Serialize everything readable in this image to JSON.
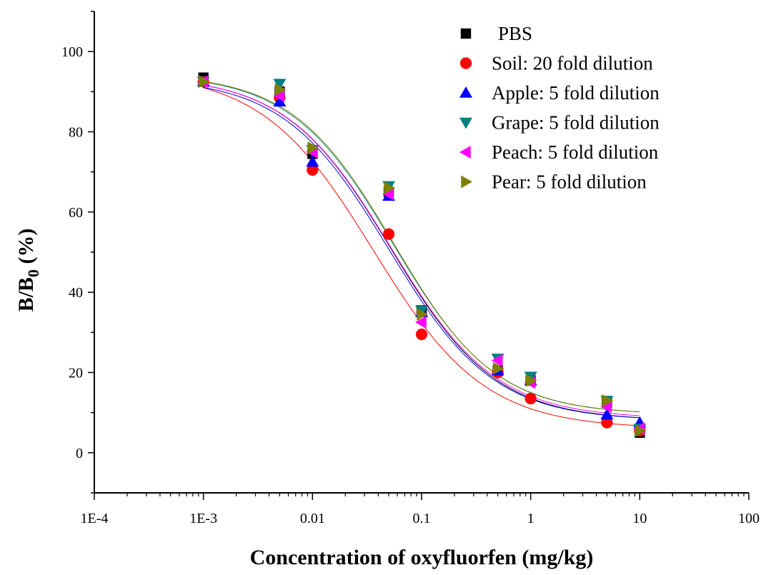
{
  "chart_data": {
    "type": "scatter",
    "title": "",
    "xlabel": "Concentration of oxyfluorfen (mg/kg)",
    "ylabel_main": "B/B",
    "ylabel_sub": "0",
    "ylabel_suffix": " (%)",
    "x_scale": "log",
    "xlim": [
      0.0001,
      100
    ],
    "ylim": [
      -10,
      110
    ],
    "x_ticks": [
      {
        "value": 0.0001,
        "label": "1E-4"
      },
      {
        "value": 0.001,
        "label": "1E-3"
      },
      {
        "value": 0.01,
        "label": "0.01"
      },
      {
        "value": 0.1,
        "label": "0.1"
      },
      {
        "value": 1,
        "label": "1"
      },
      {
        "value": 10,
        "label": "10"
      },
      {
        "value": 100,
        "label": "100"
      }
    ],
    "y_ticks": [
      {
        "value": 0,
        "label": "0"
      },
      {
        "value": 20,
        "label": "20"
      },
      {
        "value": 40,
        "label": "40"
      },
      {
        "value": 60,
        "label": "60"
      },
      {
        "value": 80,
        "label": "80"
      },
      {
        "value": 100,
        "label": "100"
      }
    ],
    "grid": false,
    "legend_position": "top-right",
    "x": [
      0.001,
      0.005,
      0.01,
      0.05,
      0.1,
      0.5,
      1,
      5,
      10
    ],
    "series": [
      {
        "name": "PBS",
        "marker": "square",
        "color": "#000000",
        "values": [
          93.5,
          90.0,
          74.5,
          65.0,
          35.5,
          20.5,
          18.0,
          12.5,
          5.0
        ],
        "fit": {
          "top": 94,
          "bottom": 8,
          "ec50": 0.052,
          "hill": 0.9
        }
      },
      {
        "name": "Soil: 20 fold dilution",
        "marker": "circle",
        "color": "#ff0000",
        "values": [
          92.5,
          88.5,
          70.5,
          54.5,
          29.5,
          20.0,
          13.5,
          7.5,
          5.5
        ],
        "fit": {
          "top": 95,
          "bottom": 6,
          "ec50": 0.036,
          "hill": 0.85
        }
      },
      {
        "name": "Apple: 5 fold dilution",
        "marker": "triangle-up",
        "color": "#0000ff",
        "values": [
          92.5,
          87.5,
          72.5,
          64.0,
          35.0,
          20.5,
          18.0,
          9.5,
          7.5
        ],
        "fit": {
          "top": 93.5,
          "bottom": 8,
          "ec50": 0.05,
          "hill": 0.9
        }
      },
      {
        "name": "Grape: 5 fold dilution",
        "marker": "triangle-down",
        "color": "#008080",
        "values": [
          92.5,
          92.0,
          75.5,
          66.5,
          35.5,
          23.5,
          19.0,
          13.0,
          6.0
        ],
        "fit": {
          "top": 94.5,
          "bottom": 9.5,
          "ec50": 0.055,
          "hill": 0.92
        }
      },
      {
        "name": "Peach: 5 fold dilution",
        "marker": "triangle-left",
        "color": "#ff00ff",
        "values": [
          92.5,
          89.0,
          75.0,
          64.5,
          32.5,
          23.0,
          17.5,
          11.5,
          6.0
        ],
        "fit": {
          "top": 94,
          "bottom": 8.5,
          "ec50": 0.052,
          "hill": 0.9
        }
      },
      {
        "name": "Pear: 5 fold dilution",
        "marker": "triangle-right",
        "color": "#808000",
        "values": [
          92.5,
          90.5,
          76.0,
          66.0,
          34.5,
          21.0,
          18.0,
          13.0,
          5.5
        ],
        "fit": {
          "top": 94.5,
          "bottom": 9.5,
          "ec50": 0.056,
          "hill": 0.93
        }
      }
    ]
  }
}
